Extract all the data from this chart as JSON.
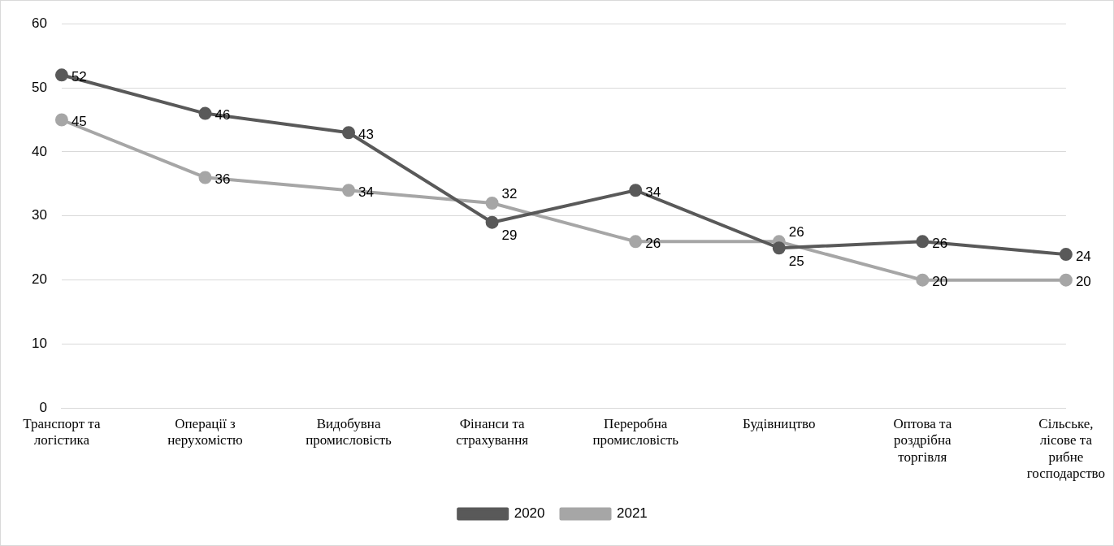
{
  "chart_data": {
    "type": "line",
    "categories": [
      "Транспорт та\nлогістика",
      "Операції з\nнерухомістю",
      "Видобувна\nпромисловість",
      "Фінанси та\nстрахування",
      "Переробна\nпромисловість",
      "Будівництво",
      "Оптова та\nроздрібна\nторгівля",
      "Сільське,\nлісове та\nрибне\nгосподарство"
    ],
    "series": [
      {
        "name": "2020",
        "color": "#595959",
        "values": [
          52,
          46,
          43,
          29,
          34,
          25,
          26,
          24
        ]
      },
      {
        "name": "2021",
        "color": "#a6a6a6",
        "values": [
          45,
          36,
          34,
          32,
          26,
          26,
          20,
          20
        ]
      }
    ],
    "ylim": [
      0,
      60
    ],
    "yticks": [
      0,
      10,
      20,
      30,
      40,
      50,
      60
    ],
    "grid": "y",
    "legend": "bottom",
    "marker": "circle",
    "line_style": "solid",
    "data_labels": true
  }
}
